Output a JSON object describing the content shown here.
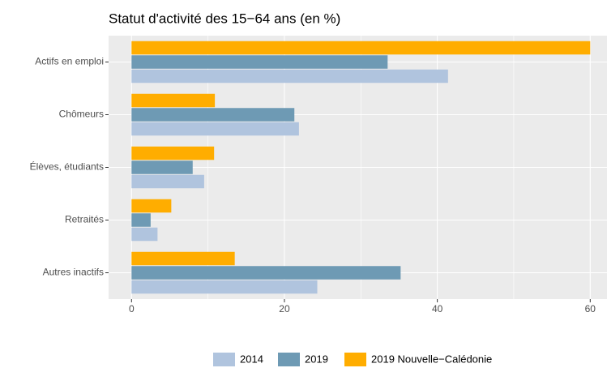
{
  "chart_data": {
    "type": "hbar",
    "title": "Statut d'activité des 15−64 ans (en %)",
    "categories": [
      "Actifs en emploi",
      "Chômeurs",
      "Élèves, étudiants",
      "Retraités",
      "Autres inactifs"
    ],
    "series": [
      {
        "name": "2014",
        "color": "#b0c4de",
        "values": [
          41.4,
          21.9,
          9.5,
          3.4,
          24.3
        ]
      },
      {
        "name": "2019",
        "color": "#6e9ab4",
        "values": [
          33.5,
          21.3,
          8.0,
          2.5,
          35.2
        ]
      },
      {
        "name": "2019 Nouvelle−Calédonie",
        "color": "#ffad00",
        "values": [
          60,
          10.9,
          10.8,
          5.2,
          13.5
        ]
      }
    ],
    "xlim": [
      -3,
      63
    ],
    "xticks": [
      0,
      20,
      40,
      60
    ],
    "minor_xticks": [
      10,
      30,
      50
    ],
    "grid": true,
    "legend": "bottom"
  }
}
